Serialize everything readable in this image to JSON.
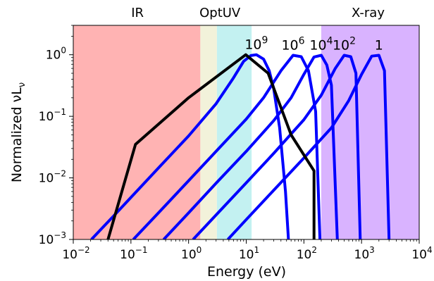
{
  "chart_data": {
    "type": "line",
    "xlabel": "Energy (eV)",
    "ylabel": "Normalized νL",
    "ylabel_sub": "ν",
    "xscale": "log",
    "yscale": "log",
    "xlim": [
      0.01,
      10000
    ],
    "ylim": [
      0.001,
      3
    ],
    "x_ticks": [
      {
        "value": 0.01,
        "base": "10",
        "exp": "−2"
      },
      {
        "value": 0.1,
        "base": "10",
        "exp": "−1"
      },
      {
        "value": 1,
        "base": "10",
        "exp": "0"
      },
      {
        "value": 10,
        "base": "10",
        "exp": "1"
      },
      {
        "value": 100,
        "base": "10",
        "exp": "2"
      },
      {
        "value": 1000,
        "base": "10",
        "exp": "3"
      },
      {
        "value": 10000,
        "base": "10",
        "exp": "4"
      }
    ],
    "y_ticks": [
      {
        "value": 0.001,
        "base": "10",
        "exp": "−3"
      },
      {
        "value": 0.01,
        "base": "10",
        "exp": "−2"
      },
      {
        "value": 0.1,
        "base": "10",
        "exp": "−1"
      },
      {
        "value": 1,
        "base": "10",
        "exp": "0"
      }
    ],
    "bands": [
      {
        "label": "IR",
        "x_range": [
          0.01,
          1.6
        ],
        "color": "#ffb3b3"
      },
      {
        "label": "",
        "x_range": [
          1.6,
          3.1
        ],
        "color": "#f2f2da"
      },
      {
        "label": "",
        "x_range": [
          3.1,
          12.4
        ],
        "color": "#c3f1f1"
      },
      {
        "label": "X-ray",
        "x_range": [
          200,
          10000
        ],
        "color": "#d9b3ff"
      }
    ],
    "band_titles": [
      {
        "label": "IR",
        "x": 0.13
      },
      {
        "label": "OptUV",
        "x": 3.5
      },
      {
        "label": "X-ray",
        "x": 1300
      }
    ],
    "series": [
      {
        "name": "10",
        "name_exp": "9",
        "color": "#0000ff",
        "x": [
          0.0206,
          0.05,
          0.1,
          0.3,
          1,
          3,
          6,
          9,
          12,
          15,
          20,
          25,
          30,
          38,
          48,
          54
        ],
        "y": [
          0.001,
          0.0024,
          0.0048,
          0.0145,
          0.048,
          0.16,
          0.42,
          0.78,
          0.97,
          1.0,
          0.85,
          0.55,
          0.28,
          0.065,
          0.006,
          0.001
        ]
      },
      {
        "name": "10",
        "name_exp": "6",
        "color": "#0000ff",
        "x": [
          0.11,
          0.3,
          1,
          3,
          10,
          20,
          40,
          65,
          90,
          120,
          160,
          190
        ],
        "y": [
          0.001,
          0.0027,
          0.009,
          0.027,
          0.09,
          0.2,
          0.55,
          0.98,
          0.93,
          0.55,
          0.12,
          0.001
        ]
      },
      {
        "name": "10",
        "name_exp": "4",
        "color": "#0000ff",
        "x": [
          0.37,
          1,
          3,
          10,
          30,
          60,
          100,
          150,
          200,
          250,
          300,
          380
        ],
        "y": [
          0.001,
          0.0027,
          0.0082,
          0.027,
          0.085,
          0.2,
          0.48,
          0.92,
          0.98,
          0.68,
          0.32,
          0.001
        ]
      },
      {
        "name": "10",
        "name_exp": "2",
        "color": "#0000ff",
        "x": [
          1.2,
          3,
          10,
          30,
          100,
          200,
          350,
          500,
          650,
          800,
          950
        ],
        "y": [
          0.001,
          0.0025,
          0.0083,
          0.025,
          0.088,
          0.22,
          0.6,
          0.98,
          0.93,
          0.5,
          0.001
        ]
      },
      {
        "name": "1",
        "name_exp": "",
        "color": "#0000ff",
        "x": [
          4.8,
          10,
          30,
          100,
          300,
          600,
          1000,
          1500,
          2000,
          2500,
          3000
        ],
        "y": [
          0.001,
          0.0021,
          0.0063,
          0.021,
          0.065,
          0.18,
          0.48,
          0.95,
          0.98,
          0.55,
          0.001
        ]
      },
      {
        "name": "",
        "name_exp": "",
        "color": "#000000",
        "x": [
          0.04,
          0.12,
          1,
          9.8,
          24,
          60,
          150,
          150
        ],
        "y": [
          0.001,
          0.035,
          0.2,
          1.0,
          0.5,
          0.05,
          0.013,
          0.001
        ]
      }
    ]
  }
}
